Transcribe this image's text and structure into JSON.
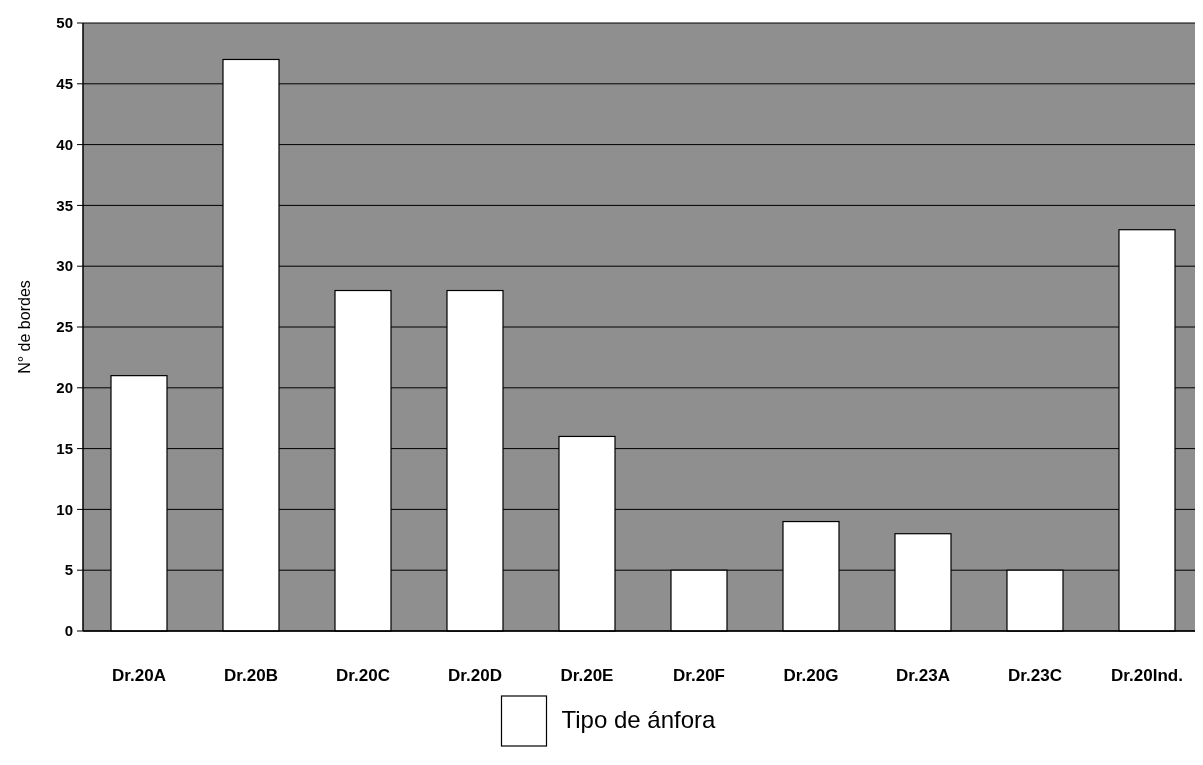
{
  "chart_data": {
    "type": "bar",
    "ylabel": "N° de bordes",
    "categories": [
      "Dr.20A",
      "Dr.20B",
      "Dr.20C",
      "Dr.20D",
      "Dr.20E",
      "Dr.20F",
      "Dr.20G",
      "Dr.23A",
      "Dr.23C",
      "Dr.20Ind."
    ],
    "series": [
      {
        "name": "Tipo de ánfora",
        "color": "#ffffff",
        "values": [
          21,
          47,
          28,
          28,
          16,
          5,
          9,
          8,
          5,
          33
        ]
      }
    ],
    "ylim": [
      0,
      50
    ],
    "yticks": [
      0,
      5,
      10,
      15,
      20,
      25,
      30,
      35,
      40,
      45,
      50
    ],
    "grid": "y",
    "legend": "bottom"
  }
}
